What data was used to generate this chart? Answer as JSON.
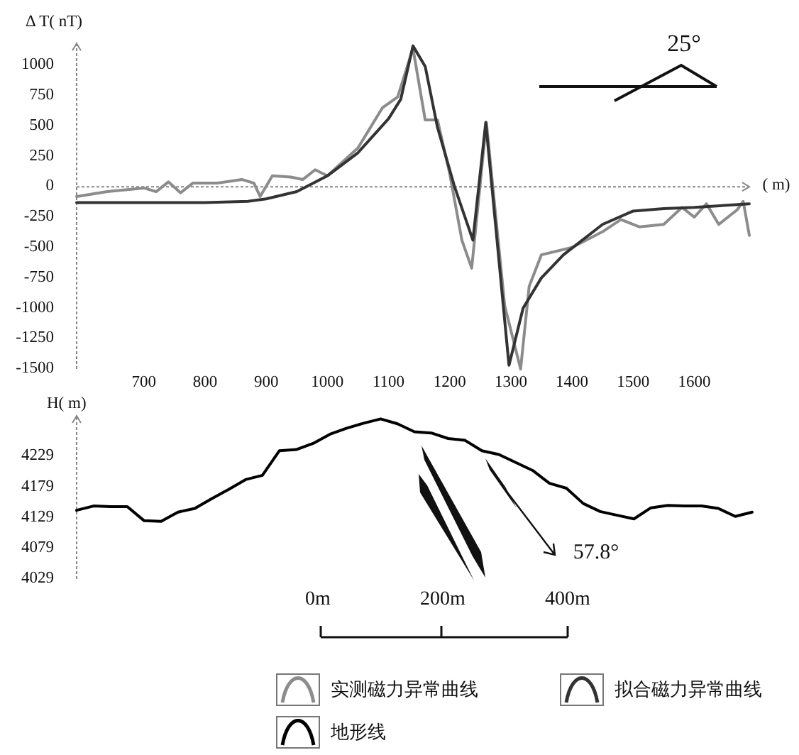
{
  "chart_data": [
    {
      "type": "line",
      "xlabel": "( m)",
      "ylabel": "Δ T( nT)",
      "xlim": [
        590,
        1690
      ],
      "xticks": [
        700,
        800,
        900,
        1000,
        1100,
        1200,
        1300,
        1400,
        1500,
        1600
      ],
      "ylim": [
        -1500,
        1180
      ],
      "yticks": [
        1000,
        750,
        500,
        250,
        0,
        -250,
        -500,
        -750,
        -1000,
        -1250,
        -1500
      ],
      "legend": "bottom",
      "annotations": [
        "25°"
      ],
      "series": [
        {
          "name": "实测磁力异常曲线",
          "color": "#8c8c8c",
          "x": [
            590,
            640,
            700,
            720,
            740,
            760,
            780,
            820,
            860,
            880,
            890,
            910,
            940,
            960,
            980,
            1000,
            1050,
            1090,
            1115,
            1140,
            1160,
            1180,
            1200,
            1220,
            1236,
            1260,
            1290,
            1316,
            1330,
            1350,
            1400,
            1450,
            1480,
            1510,
            1550,
            1580,
            1600,
            1620,
            1640,
            1670,
            1680,
            1690
          ],
          "values": [
            -80,
            -40,
            -10,
            -40,
            40,
            -50,
            30,
            30,
            60,
            30,
            -80,
            90,
            80,
            60,
            140,
            90,
            320,
            650,
            740,
            1140,
            550,
            550,
            110,
            -440,
            -670,
            530,
            -980,
            -1500,
            -820,
            -560,
            -500,
            -370,
            -270,
            -330,
            -310,
            -170,
            -250,
            -140,
            -310,
            -190,
            -120,
            -400
          ]
        },
        {
          "name": "拟合磁力异常曲线",
          "color": "#333333",
          "x": [
            590,
            700,
            800,
            870,
            900,
            950,
            1000,
            1050,
            1100,
            1120,
            1140,
            1160,
            1180,
            1208,
            1238,
            1259,
            1297,
            1320,
            1350,
            1386,
            1450,
            1500,
            1550,
            1600,
            1690
          ],
          "values": [
            -130,
            -130,
            -130,
            -120,
            -100,
            -40,
            90,
            280,
            560,
            720,
            1160,
            990,
            490,
            0,
            -440,
            530,
            -1470,
            -1000,
            -750,
            -560,
            -310,
            -200,
            -180,
            -170,
            -140
          ]
        }
      ]
    },
    {
      "type": "line",
      "ylabel": "H( m)",
      "tick_labels": "y",
      "ylim": [
        4029,
        4295
      ],
      "yticks": [
        4029,
        4079,
        4129,
        4179,
        4229
      ],
      "legend": "bottom",
      "annotations": [
        "57.8°",
        "0m",
        "200m",
        "400m"
      ],
      "categories": [
        null,
        null,
        null,
        null,
        null,
        null,
        null,
        null,
        null,
        null,
        null,
        null,
        null,
        null,
        null,
        null,
        null,
        null,
        null,
        null,
        null,
        null,
        null,
        null,
        null,
        null,
        null,
        null,
        null,
        null,
        null,
        null,
        null,
        null,
        null,
        null,
        null,
        null,
        null,
        null,
        null
      ],
      "series": [
        {
          "name": "地形线",
          "color": "#000000",
          "values": [
            4141,
            4148,
            4147,
            4147,
            4124,
            4123,
            4138,
            4144,
            4160,
            4175,
            4191,
            4198,
            4238,
            4240,
            4250,
            4265,
            4275,
            4283,
            4290,
            4282,
            4269,
            4267,
            4258,
            4255,
            4238,
            4232,
            4219,
            4206,
            4185,
            4177,
            4152,
            4139,
            4133,
            4127,
            4145,
            4149,
            4148,
            4148,
            4144,
            4131,
            4138
          ]
        }
      ]
    }
  ]
}
